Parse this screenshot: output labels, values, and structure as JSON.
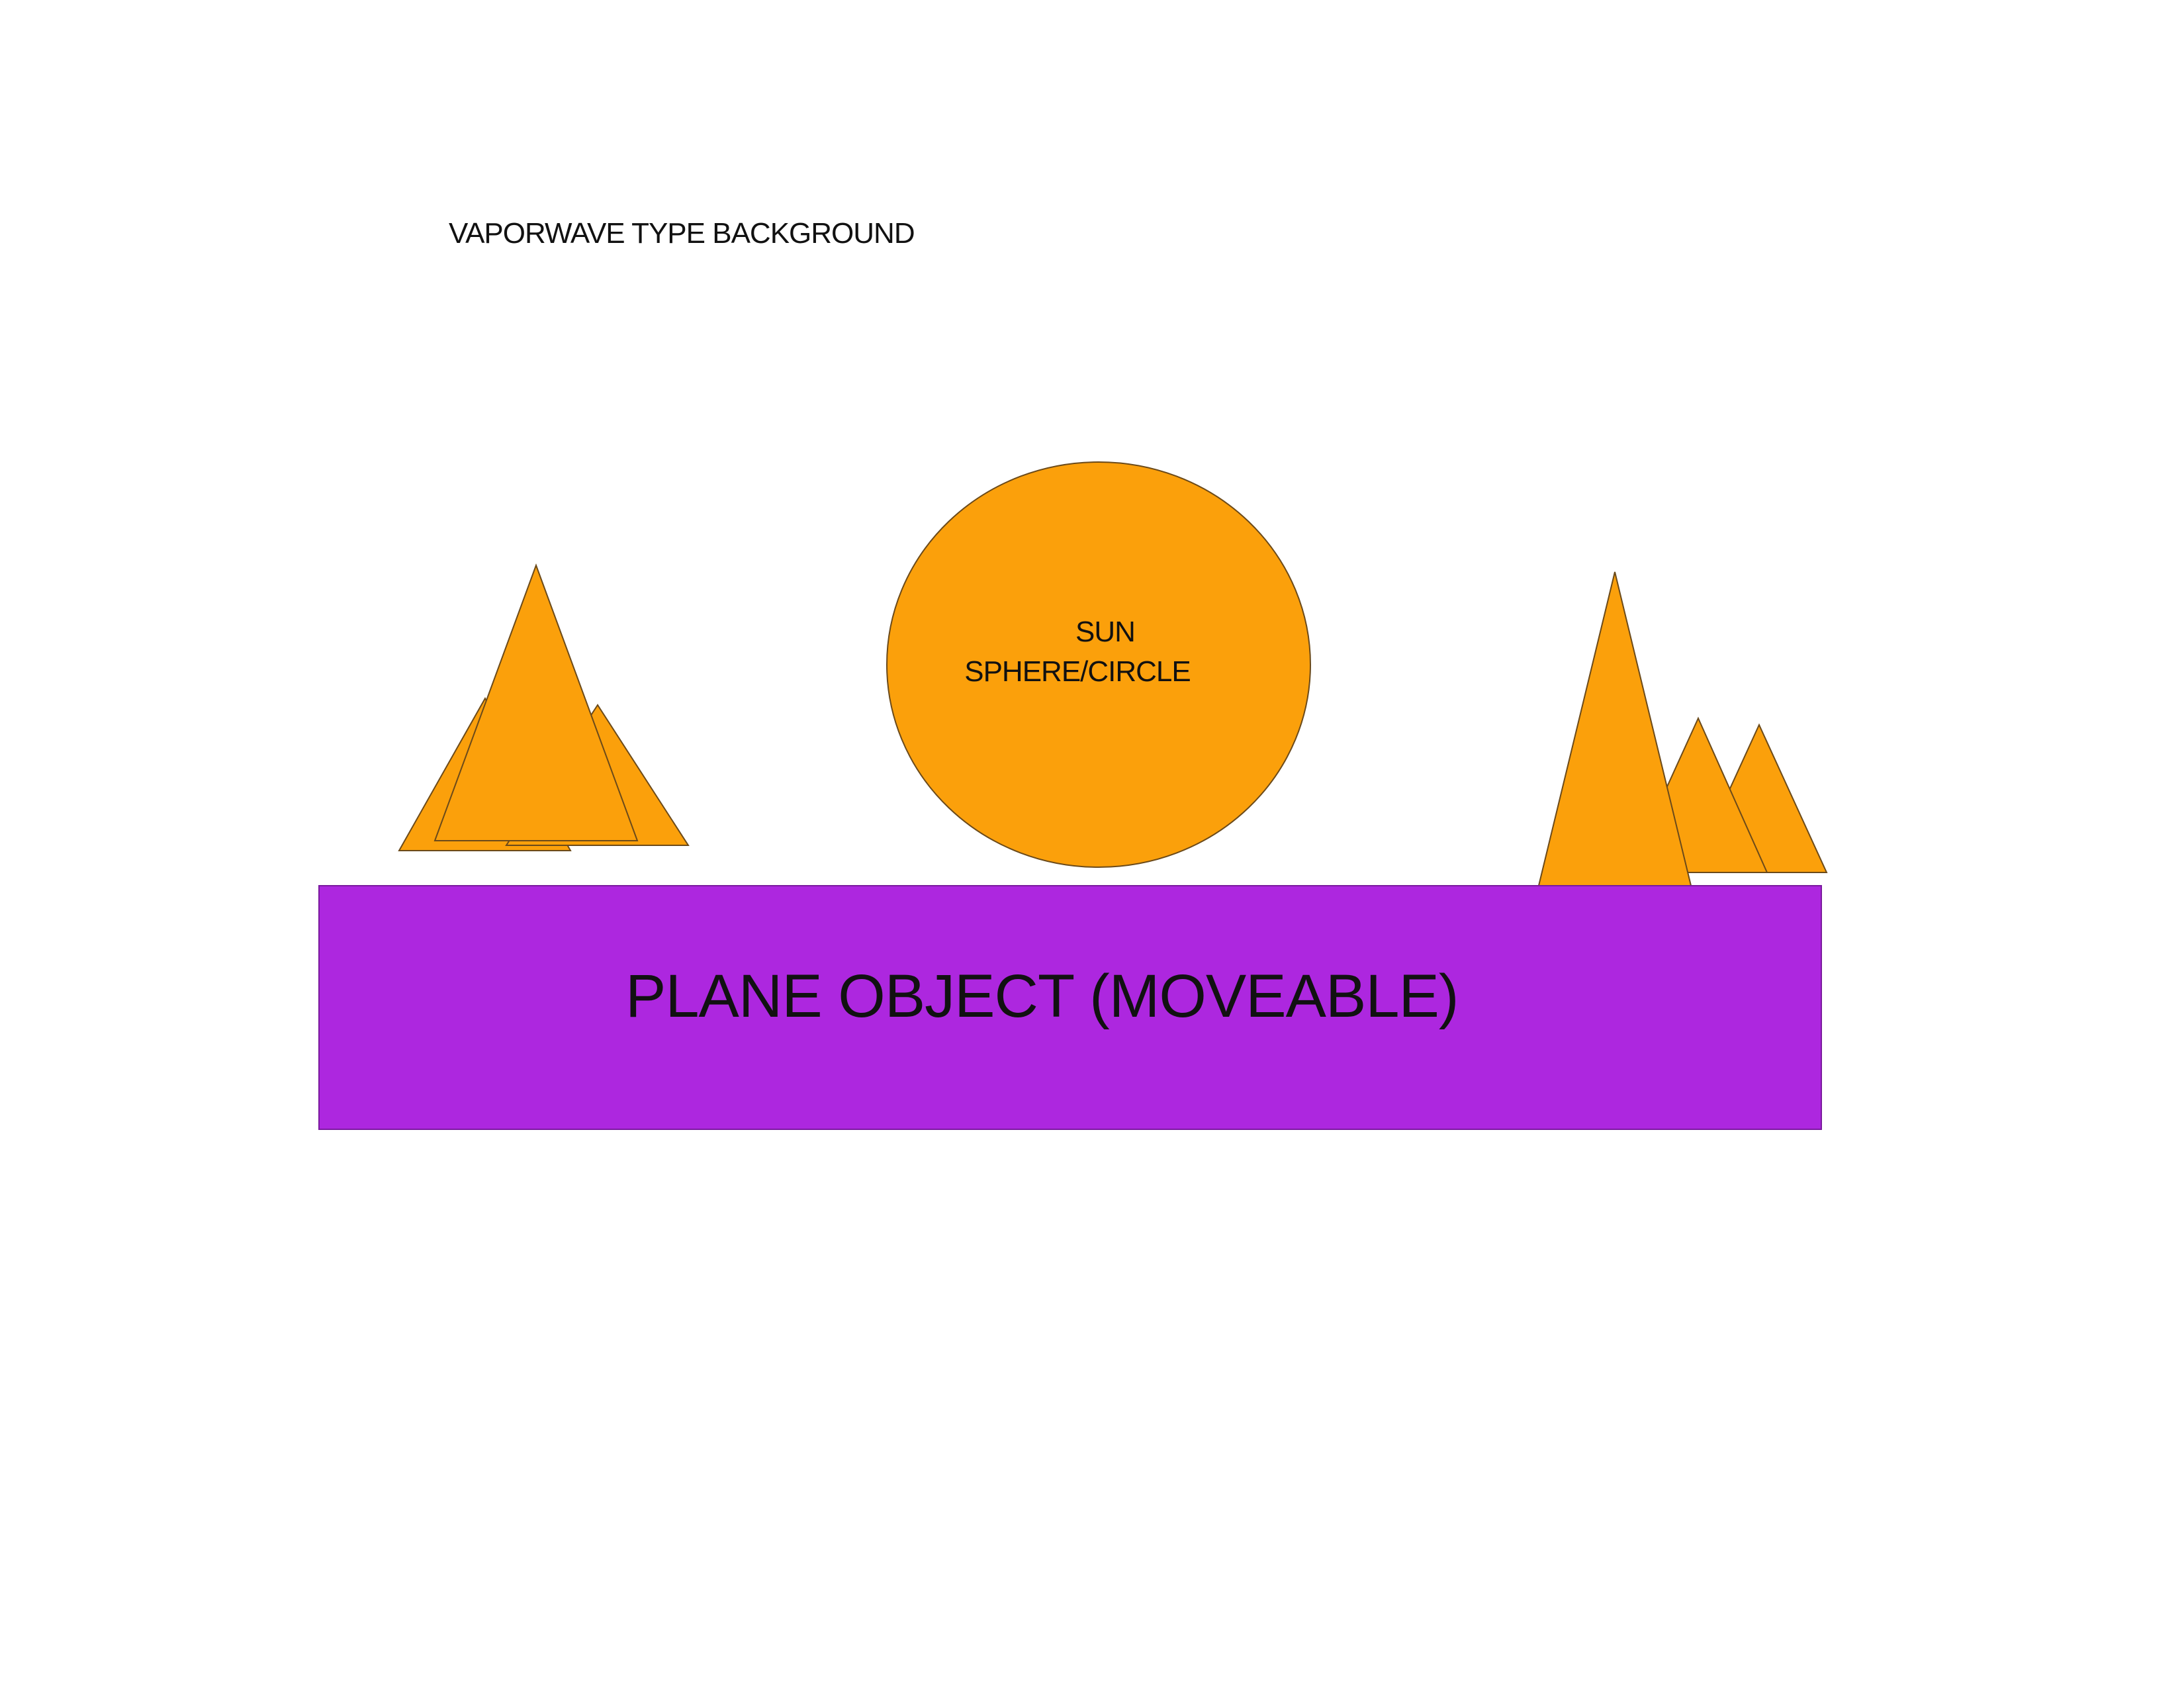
{
  "title": "VAPORWAVE TYPE BACKGROUND",
  "sun": {
    "line1": "SUN",
    "line2": "SPHERE/CIRCLE",
    "fill_color": "#fba00b"
  },
  "plane": {
    "label": "PLANE OBJECT (MOVEABLE)",
    "fill_color": "#ad27df"
  },
  "mountain_color": "#fba00b",
  "outline_color": "#6b4a1a"
}
